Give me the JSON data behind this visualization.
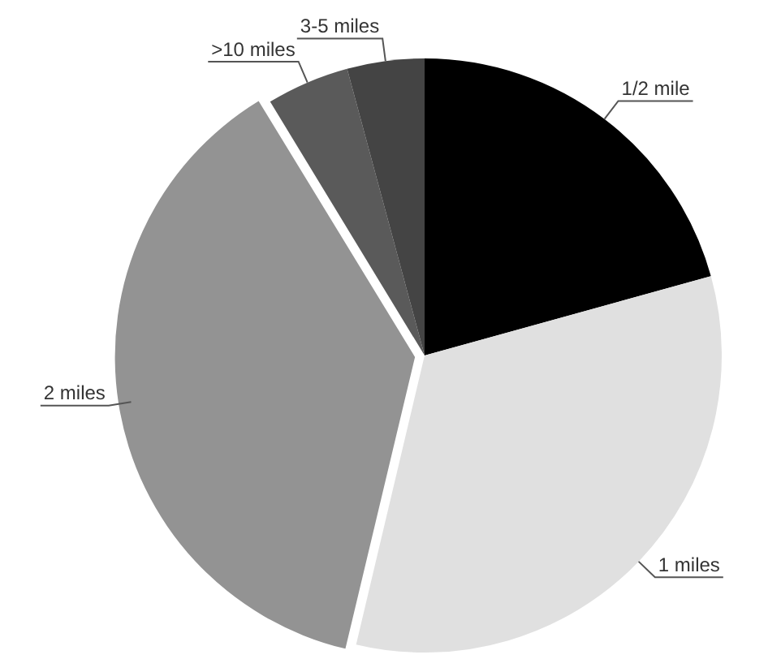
{
  "chart_data": {
    "type": "pie",
    "categories": [
      "1/2 mile",
      "1 miles",
      "2 miles",
      ">10 miles",
      "3-5 miles"
    ],
    "values": [
      20.7,
      33,
      37.6,
      4.5,
      4.2
    ],
    "colors": [
      "#000000",
      "#e0e0e0",
      "#939393",
      "#5a5a5a",
      "#444444"
    ],
    "legend": false
  }
}
